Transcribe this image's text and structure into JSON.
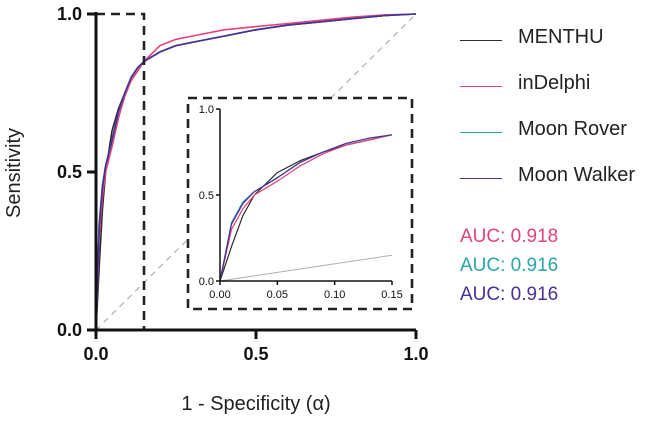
{
  "chart_data": [
    {
      "type": "line",
      "title": "",
      "xlabel": "1 - Specificity (α)",
      "ylabel": "Sensitivity",
      "xlim": [
        0,
        1
      ],
      "ylim": [
        0,
        1
      ],
      "x_ticks": [
        "0.0",
        "0.5",
        "1.0"
      ],
      "y_ticks": [
        "0.0",
        "0.5",
        "1.0"
      ],
      "grid": false,
      "legend_position": "right",
      "reference_line": {
        "x": [
          0,
          1
        ],
        "y": [
          0,
          1
        ],
        "style": "dashed",
        "color": "#b0b0b0"
      },
      "zoom_box": {
        "x": [
          0,
          0.15
        ],
        "y": [
          0,
          1
        ],
        "style": "dashed"
      },
      "series": [
        {
          "name": "MENTHU",
          "color": "#2b2b2b",
          "x": [
            0,
            0.01,
            0.02,
            0.03,
            0.05,
            0.07,
            0.09,
            0.11,
            0.13,
            0.15,
            0.2,
            0.25,
            0.3,
            0.4,
            0.5,
            0.6,
            0.7,
            0.8,
            0.9,
            1.0
          ],
          "y": [
            0,
            0.2,
            0.38,
            0.5,
            0.63,
            0.7,
            0.75,
            0.79,
            0.82,
            0.85,
            0.88,
            0.9,
            0.91,
            0.93,
            0.95,
            0.965,
            0.975,
            0.985,
            0.995,
            1.0
          ]
        },
        {
          "name": "inDelphi",
          "color": "#e4437a",
          "x": [
            0,
            0.01,
            0.02,
            0.03,
            0.05,
            0.07,
            0.09,
            0.11,
            0.13,
            0.15,
            0.2,
            0.25,
            0.3,
            0.4,
            0.5,
            0.6,
            0.7,
            0.8,
            0.9,
            1.0
          ],
          "y": [
            0,
            0.3,
            0.42,
            0.5,
            0.58,
            0.67,
            0.74,
            0.79,
            0.82,
            0.85,
            0.9,
            0.92,
            0.93,
            0.95,
            0.96,
            0.97,
            0.98,
            0.99,
            0.997,
            1.0
          ]
        },
        {
          "name": "Moon Rover",
          "color": "#2aa6a6",
          "x": [
            0,
            0.01,
            0.02,
            0.03,
            0.05,
            0.07,
            0.09,
            0.11,
            0.13,
            0.15,
            0.2,
            0.25,
            0.3,
            0.4,
            0.5,
            0.6,
            0.7,
            0.8,
            0.9,
            1.0
          ],
          "y": [
            0,
            0.34,
            0.46,
            0.52,
            0.6,
            0.69,
            0.75,
            0.8,
            0.83,
            0.85,
            0.88,
            0.9,
            0.91,
            0.93,
            0.95,
            0.965,
            0.975,
            0.985,
            0.995,
            1.0
          ]
        },
        {
          "name": "Moon Walker",
          "color": "#4b2f97",
          "x": [
            0,
            0.01,
            0.02,
            0.03,
            0.05,
            0.07,
            0.09,
            0.11,
            0.13,
            0.15,
            0.2,
            0.25,
            0.3,
            0.4,
            0.5,
            0.6,
            0.7,
            0.8,
            0.9,
            1.0
          ],
          "y": [
            0,
            0.33,
            0.45,
            0.52,
            0.6,
            0.69,
            0.75,
            0.8,
            0.83,
            0.85,
            0.88,
            0.9,
            0.91,
            0.93,
            0.95,
            0.965,
            0.975,
            0.985,
            0.995,
            1.0
          ]
        }
      ]
    },
    {
      "type": "line",
      "title": "",
      "xlabel": "",
      "ylabel": "",
      "xlim": [
        0,
        0.15
      ],
      "ylim": [
        0,
        1
      ],
      "x_ticks": [
        "0.00",
        "0.05",
        "0.10",
        "0.15"
      ],
      "y_ticks": [
        "0.0",
        "0.5",
        "1.0"
      ],
      "grid": false,
      "reference_line": {
        "x": [
          0,
          0.15
        ],
        "y": [
          0,
          0.15
        ],
        "style": "solid",
        "color": "#b0b0b0"
      }
    }
  ],
  "legend": [
    {
      "label": "MENTHU",
      "color": "#2b2b2b"
    },
    {
      "label": "inDelphi",
      "color": "#e4437a"
    },
    {
      "label": "Moon Rover",
      "color": "#2aa6a6"
    },
    {
      "label": "Moon Walker",
      "color": "#4b2f97"
    }
  ],
  "auc": [
    {
      "text": "AUC: 0.918",
      "color": "#e4437a"
    },
    {
      "text": "AUC: 0.916",
      "color": "#2aa6a6"
    },
    {
      "text": "AUC: 0.916",
      "color": "#4b2f97"
    }
  ]
}
